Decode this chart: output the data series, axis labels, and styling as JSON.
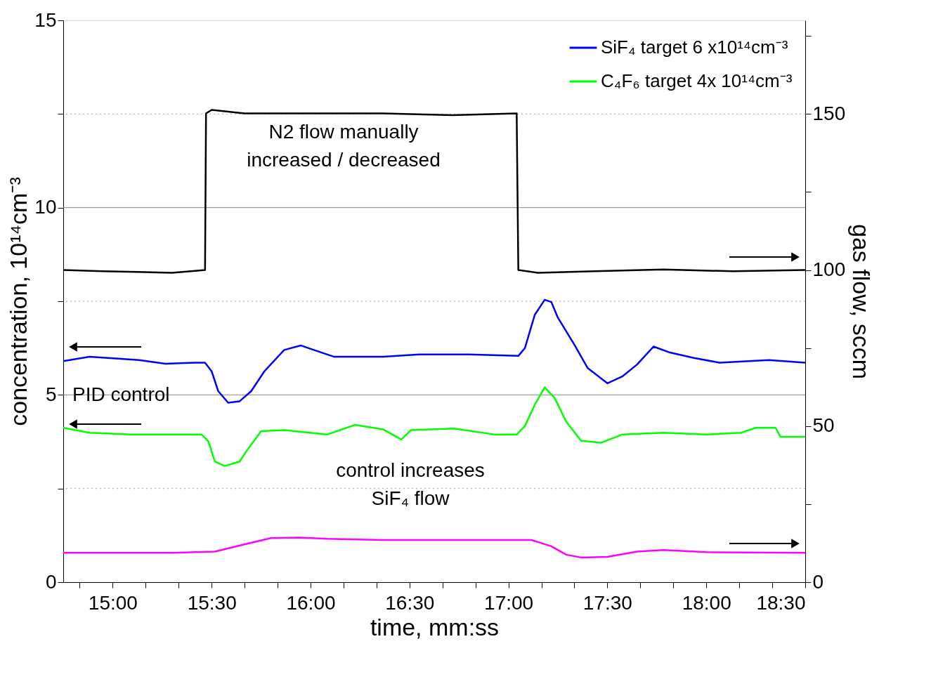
{
  "chart_data": {
    "type": "line",
    "xlabel": "time, mm:ss",
    "ylabel": "concentration, 10¹⁴cm⁻³",
    "y2label": "gas flow, sccm",
    "xlim": [
      885,
      1110
    ],
    "xticks": [
      {
        "value": 890,
        "label": null
      },
      {
        "value": 900,
        "label": "15:00"
      },
      {
        "value": 910,
        "label": null
      },
      {
        "value": 920,
        "label": null
      },
      {
        "value": 930,
        "label": "15:30"
      },
      {
        "value": 940,
        "label": null
      },
      {
        "value": 950,
        "label": null
      },
      {
        "value": 960,
        "label": "16:00"
      },
      {
        "value": 970,
        "label": null
      },
      {
        "value": 980,
        "label": null
      },
      {
        "value": 990,
        "label": "16:30"
      },
      {
        "value": 1000,
        "label": null
      },
      {
        "value": 1010,
        "label": null
      },
      {
        "value": 1020,
        "label": "17:00"
      },
      {
        "value": 1030,
        "label": null
      },
      {
        "value": 1040,
        "label": null
      },
      {
        "value": 1050,
        "label": "17:30"
      },
      {
        "value": 1060,
        "label": null
      },
      {
        "value": 1070,
        "label": null
      },
      {
        "value": 1080,
        "label": "18:00"
      },
      {
        "value": 1090,
        "label": null
      },
      {
        "value": 1100,
        "label": null
      },
      {
        "value": 1110,
        "label": "18:30"
      }
    ],
    "ylim": [
      0,
      15
    ],
    "yticks": [
      0,
      {
        "value": 2.5,
        "label": null
      },
      5,
      {
        "value": 7.5,
        "label": null
      },
      10,
      {
        "value": 12.5,
        "label": null
      },
      15
    ],
    "y2lim": [
      0,
      180
    ],
    "y2ticks": [
      0,
      {
        "value": 25,
        "label": null
      },
      50,
      {
        "value": 75,
        "label": null
      },
      100,
      {
        "value": 125,
        "label": null
      },
      150,
      {
        "value": 175,
        "label": null
      }
    ],
    "grid": "y",
    "legend": "top right",
    "marker": "none",
    "line_style": "solid",
    "series": [
      {
        "name": "SiF₄ target 6 x10¹⁴cm⁻³",
        "color": "#0000ff",
        "x": [
          885,
          893,
          908,
          916,
          925,
          928,
          930,
          932,
          935,
          938.5,
          942,
          946,
          952,
          957,
          961,
          967,
          982,
          993,
          1008,
          1023,
          1025,
          1028,
          1031,
          1033,
          1035,
          1040,
          1044,
          1050,
          1054.5,
          1059,
          1064,
          1069,
          1076,
          1084,
          1099,
          1110
        ],
        "values": [
          5.9,
          6.02,
          5.93,
          5.83,
          5.86,
          5.86,
          5.63,
          5.1,
          4.79,
          4.83,
          5.1,
          5.63,
          6.2,
          6.32,
          6.2,
          6.02,
          6.02,
          6.08,
          6.08,
          6.04,
          6.25,
          7.14,
          7.54,
          7.48,
          7.06,
          6.34,
          5.72,
          5.31,
          5.49,
          5.81,
          6.29,
          6.13,
          5.99,
          5.86,
          5.93,
          5.86
        ]
      },
      {
        "name": "C₄F₆ target 4x 10¹⁴cm⁻³",
        "color": "#00ff00",
        "x": [
          885,
          893,
          905.5,
          918,
          927,
          929,
          931,
          934,
          938.5,
          940.5,
          945,
          952,
          965,
          973.5,
          982,
          987.5,
          990.5,
          1003.5,
          1016,
          1022.5,
          1025,
          1028,
          1031,
          1034,
          1037.5,
          1042,
          1048,
          1054.5,
          1067,
          1080,
          1090.5,
          1095,
          1101,
          1102.5,
          1110
        ],
        "values": [
          4.12,
          3.99,
          3.94,
          3.94,
          3.94,
          3.76,
          3.22,
          3.1,
          3.22,
          3.49,
          4.03,
          4.06,
          3.94,
          4.2,
          4.08,
          3.81,
          4.06,
          4.1,
          3.94,
          3.94,
          4.17,
          4.74,
          5.2,
          4.92,
          4.29,
          3.78,
          3.72,
          3.94,
          3.99,
          3.94,
          3.99,
          4.12,
          4.12,
          3.88,
          3.88
        ]
      },
      {
        "color": "#000000",
        "axis": "y2",
        "x": [
          885,
          897,
          907.5,
          918,
          928,
          928.3,
          930,
          940,
          961,
          982,
          1003,
          1022.5,
          1023,
          1029,
          1046,
          1067,
          1088,
          1110
        ],
        "values": [
          100,
          99.6,
          99.4,
          99.1,
          100,
          150.2,
          151.3,
          150.2,
          150.2,
          150.2,
          149.6,
          150.2,
          100,
          99.1,
          99.6,
          100.2,
          99.6,
          100
        ]
      },
      {
        "color": "#ff00ff",
        "axis": "y2",
        "x": [
          885,
          918,
          931,
          939.5,
          948,
          956.5,
          965,
          982,
          1003,
          1027,
          1033,
          1037.5,
          1042,
          1050,
          1059,
          1067,
          1080,
          1110
        ],
        "values": [
          9.4,
          9.4,
          9.8,
          12.0,
          14.1,
          14.3,
          13.9,
          13.5,
          13.5,
          13.5,
          11.5,
          8.8,
          7.9,
          8.1,
          9.8,
          10.3,
          9.6,
          9.4
        ]
      }
    ],
    "annotations": [
      "N2 flow manually\nincreased / decreased",
      "PID control",
      "control increases\nSiF₄ flow"
    ]
  }
}
